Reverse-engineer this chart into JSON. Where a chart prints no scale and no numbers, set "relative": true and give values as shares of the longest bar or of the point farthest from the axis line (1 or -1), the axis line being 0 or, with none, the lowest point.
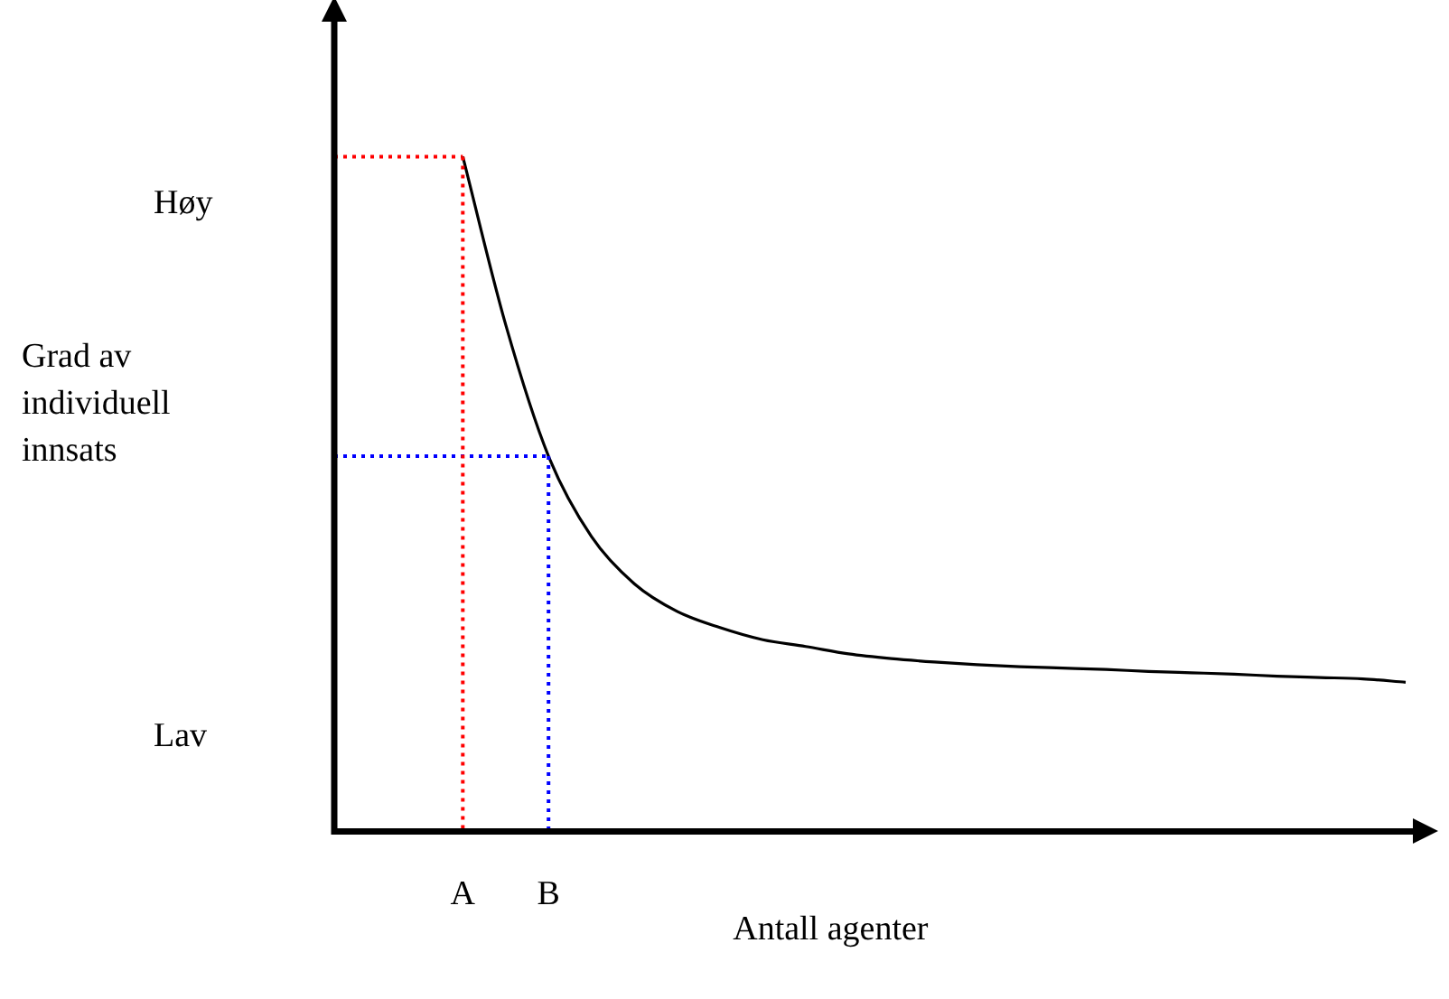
{
  "chart_data": {
    "type": "line",
    "relative": true,
    "xlabel": "Antall agenter",
    "ylabel": "Grad av individuell innsats",
    "categories": [
      null,
      null,
      null,
      "A",
      null,
      "B",
      null,
      null,
      null,
      null,
      null,
      null,
      null,
      null,
      null,
      null,
      null,
      null,
      null,
      null,
      null,
      null,
      null,
      null,
      null,
      null
    ],
    "series": [
      {
        "color": "#000000",
        "line_style": "solid",
        "values": [
          null,
          null,
          null,
          1,
          0.751,
          0.556,
          0.437,
          0.367,
          0.326,
          0.302,
          0.284,
          0.274,
          0.263,
          0.256,
          0.251,
          0.247,
          0.244,
          0.242,
          0.24,
          0.237,
          0.235,
          0.233,
          0.23,
          0.228,
          0.226,
          0.221
        ]
      },
      {
        "color": "#ff0000",
        "line_style": "dotted",
        "values": [
          1,
          1,
          1,
          1,
          null,
          null,
          null,
          null,
          null,
          null,
          null,
          null,
          null,
          null,
          null,
          null,
          null,
          null,
          null,
          null,
          null,
          null,
          null,
          null,
          null,
          null
        ]
      },
      {
        "color": "#0000ff",
        "line_style": "dotted",
        "values": [
          0.556,
          0.556,
          0.556,
          0.556,
          0.556,
          0.556,
          null,
          null,
          null,
          null,
          null,
          null,
          null,
          null,
          null,
          null,
          null,
          null,
          null,
          null,
          null,
          null,
          null,
          null,
          null,
          null
        ]
      }
    ],
    "annotations": [
      "Høy",
      "Lav"
    ],
    "legend": false,
    "grid": false,
    "marker": "none"
  }
}
